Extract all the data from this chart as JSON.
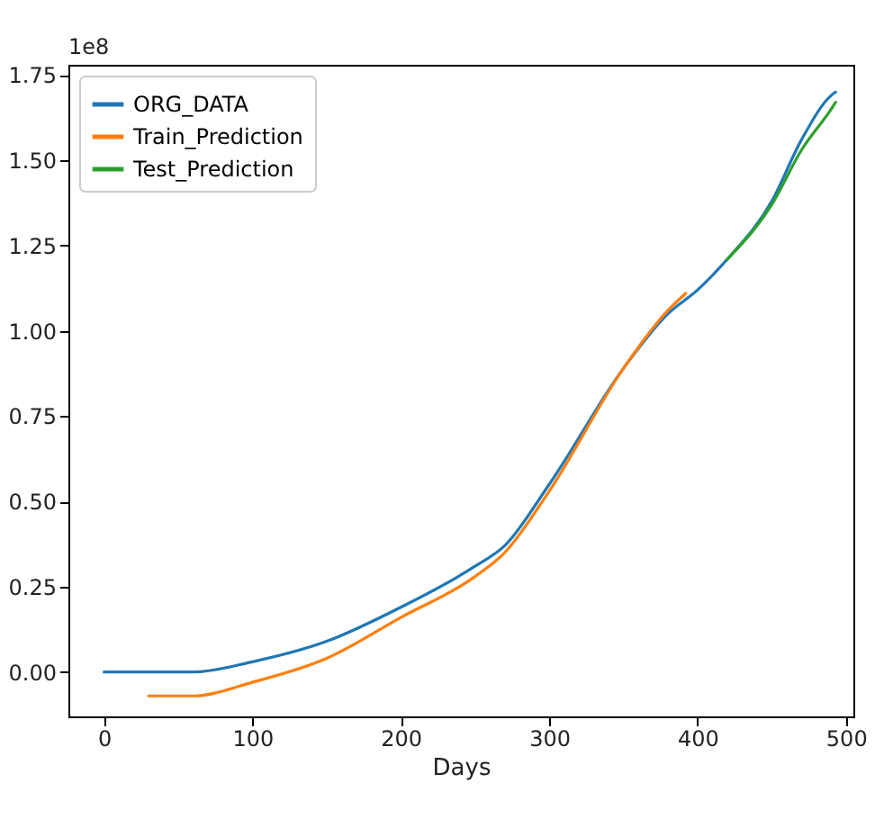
{
  "chart_data": {
    "type": "line",
    "xlabel": "Days",
    "annotations": [
      "1e8"
    ],
    "xlim": [
      -24,
      505
    ],
    "xticks": [
      0,
      100,
      200,
      300,
      400,
      500
    ],
    "ylim": [
      -0.13,
      1.78
    ],
    "yticks": [
      {
        "value": 0,
        "label": "0.00"
      },
      {
        "value": 0.25,
        "label": "0.25"
      },
      {
        "value": 0.5,
        "label": "0.50"
      },
      {
        "value": 0.75,
        "label": "0.75"
      },
      {
        "value": 1,
        "label": "1.00"
      },
      {
        "value": 1.25,
        "label": "1.25"
      },
      {
        "value": 1.5,
        "label": "1.50"
      },
      {
        "value": 1.75,
        "label": "1.75"
      }
    ],
    "grid": false,
    "legend": "top left",
    "series": [
      {
        "name": "ORG_DATA",
        "color": "#1f77b4",
        "x": [
          0,
          30,
          60,
          100,
          150,
          200,
          250,
          270,
          300,
          350,
          380,
          400,
          420,
          450,
          470,
          490,
          493
        ],
        "values": [
          0,
          0,
          0,
          0.03,
          0.09,
          0.19,
          0.31,
          0.37,
          0.55,
          0.89,
          1.05,
          1.12,
          1.21,
          1.38,
          1.56,
          1.69,
          1.7
        ]
      },
      {
        "name": "Train_Prediction",
        "color": "#ff7f0e",
        "x": [
          30,
          60,
          100,
          150,
          200,
          250,
          270,
          300,
          350,
          380,
          392
        ],
        "values": [
          -0.07,
          -0.07,
          -0.03,
          0.04,
          0.16,
          0.28,
          0.35,
          0.53,
          0.89,
          1.06,
          1.11
        ]
      },
      {
        "name": "Test_Prediction",
        "color": "#2ca02c",
        "x": [
          420,
          450,
          470,
          490,
          493
        ],
        "values": [
          1.21,
          1.37,
          1.53,
          1.65,
          1.67
        ]
      }
    ]
  }
}
